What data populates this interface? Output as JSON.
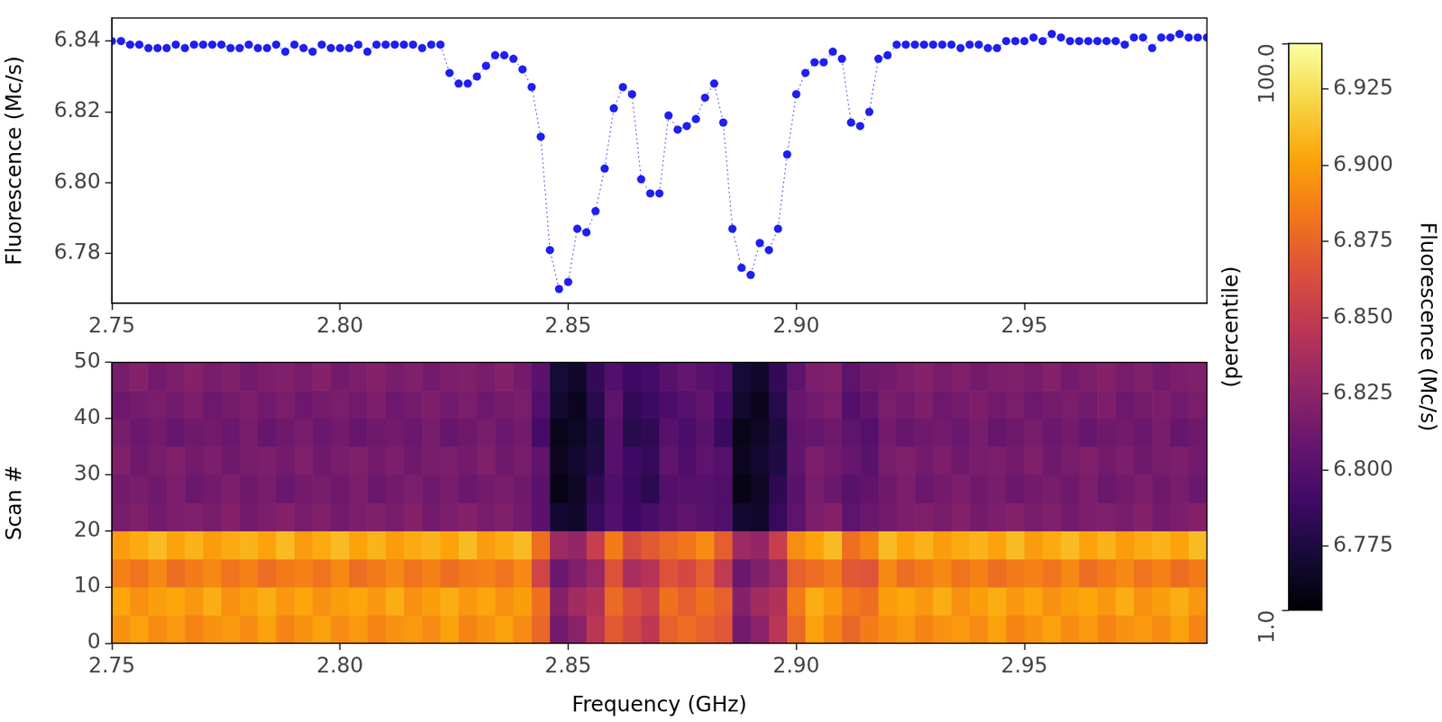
{
  "chart_data": [
    {
      "type": "line",
      "ylabel": "Fluorescence (Mc/s)",
      "color": "#1f1ff0",
      "marker": "circle",
      "line_style": "dotted",
      "grid": false,
      "xlim": [
        2.75,
        2.99
      ],
      "xticks": [
        2.75,
        {
          "value": 2.8,
          "label": "2.80"
        },
        2.85,
        {
          "value": 2.9,
          "label": "2.90"
        },
        2.95
      ],
      "ylim": [
        6.766,
        6.8465
      ],
      "yticks": [
        6.78,
        {
          "value": 6.8,
          "label": "6.80"
        },
        6.82,
        6.84
      ],
      "x": [
        2.75,
        2.752,
        2.754,
        2.756,
        2.758,
        2.76,
        2.762,
        2.764,
        2.766,
        2.768,
        2.77,
        2.772,
        2.774,
        2.776,
        2.778,
        2.78,
        2.782,
        2.784,
        2.786,
        2.788,
        2.79,
        2.792,
        2.794,
        2.796,
        2.798,
        2.8,
        2.802,
        2.804,
        2.806,
        2.808,
        2.81,
        2.812,
        2.814,
        2.816,
        2.818,
        2.82,
        2.822,
        2.824,
        2.826,
        2.828,
        2.83,
        2.832,
        2.834,
        2.836,
        2.838,
        2.84,
        2.842,
        2.844,
        2.846,
        2.848,
        2.85,
        2.852,
        2.854,
        2.856,
        2.858,
        2.86,
        2.862,
        2.864,
        2.866,
        2.868,
        2.87,
        2.872,
        2.874,
        2.876,
        2.878,
        2.88,
        2.882,
        2.884,
        2.886,
        2.888,
        2.89,
        2.892,
        2.894,
        2.896,
        2.898,
        2.9,
        2.902,
        2.904,
        2.906,
        2.908,
        2.91,
        2.912,
        2.914,
        2.916,
        2.918,
        2.92,
        2.922,
        2.924,
        2.926,
        2.928,
        2.93,
        2.932,
        2.934,
        2.936,
        2.938,
        2.94,
        2.942,
        2.944,
        2.946,
        2.948,
        2.95,
        2.952,
        2.954,
        2.956,
        2.958,
        2.96,
        2.962,
        2.964,
        2.966,
        2.968,
        2.97,
        2.972,
        2.974,
        2.976,
        2.978,
        2.98,
        2.982,
        2.984,
        2.986,
        2.988,
        2.99
      ],
      "values": [
        6.84,
        6.84,
        6.839,
        6.839,
        6.838,
        6.838,
        6.838,
        6.839,
        6.838,
        6.839,
        6.839,
        6.839,
        6.839,
        6.838,
        6.838,
        6.839,
        6.838,
        6.838,
        6.839,
        6.837,
        6.839,
        6.838,
        6.837,
        6.839,
        6.838,
        6.838,
        6.838,
        6.839,
        6.837,
        6.839,
        6.839,
        6.839,
        6.839,
        6.839,
        6.838,
        6.839,
        6.839,
        6.831,
        6.828,
        6.828,
        6.83,
        6.833,
        6.836,
        6.836,
        6.835,
        6.832,
        6.827,
        6.813,
        6.781,
        6.77,
        6.772,
        6.787,
        6.786,
        6.792,
        6.804,
        6.821,
        6.827,
        6.825,
        6.801,
        6.797,
        6.797,
        6.819,
        6.815,
        6.816,
        6.818,
        6.824,
        6.828,
        6.817,
        6.787,
        6.776,
        6.774,
        6.783,
        6.781,
        6.787,
        6.808,
        6.825,
        6.831,
        6.834,
        6.834,
        6.837,
        6.835,
        6.817,
        6.816,
        6.82,
        6.835,
        6.836,
        6.839,
        6.839,
        6.839,
        6.839,
        6.839,
        6.839,
        6.839,
        6.838,
        6.839,
        6.839,
        6.838,
        6.838,
        6.84,
        6.84,
        6.84,
        6.841,
        6.84,
        6.842,
        6.841,
        6.84,
        6.84,
        6.84,
        6.84,
        6.84,
        6.84,
        6.839,
        6.841,
        6.841,
        6.838,
        6.841,
        6.841,
        6.842,
        6.841,
        6.841,
        6.841
      ]
    },
    {
      "type": "heatmap",
      "xlabel": "Frequency (GHz)",
      "ylabel": "Scan #",
      "grid": false,
      "xlim": [
        2.75,
        2.99
      ],
      "xticks": [
        2.75,
        {
          "value": 2.8,
          "label": "2.80"
        },
        2.85,
        {
          "value": 2.9,
          "label": "2.90"
        },
        2.95
      ],
      "ylim": [
        0,
        50
      ],
      "yticks": [
        0,
        10,
        20,
        30,
        40,
        50
      ],
      "x_edges": [
        2.75,
        2.754,
        2.758,
        2.762,
        2.766,
        2.77,
        2.774,
        2.778,
        2.782,
        2.786,
        2.79,
        2.794,
        2.798,
        2.802,
        2.806,
        2.81,
        2.814,
        2.818,
        2.822,
        2.826,
        2.83,
        2.834,
        2.838,
        2.842,
        2.846,
        2.85,
        2.854,
        2.858,
        2.862,
        2.866,
        2.87,
        2.874,
        2.878,
        2.882,
        2.886,
        2.89,
        2.894,
        2.898,
        2.902,
        2.906,
        2.91,
        2.914,
        2.918,
        2.922,
        2.926,
        2.93,
        2.934,
        2.938,
        2.942,
        2.946,
        2.95,
        2.954,
        2.958,
        2.962,
        2.966,
        2.97,
        2.974,
        2.978,
        2.982,
        2.986,
        2.99
      ],
      "y_edges": [
        0,
        5,
        10,
        15,
        20,
        25,
        30,
        35,
        40,
        45,
        50
      ],
      "cells": [
        [
          6.895,
          6.901,
          6.892,
          6.898,
          6.889,
          6.895,
          6.898,
          6.892,
          6.901,
          6.889,
          6.895,
          6.901,
          6.892,
          6.898,
          6.889,
          6.895,
          6.898,
          6.892,
          6.901,
          6.889,
          6.895,
          6.901,
          6.892,
          6.876,
          6.814,
          6.824,
          6.846,
          6.87,
          6.86,
          6.848,
          6.873,
          6.879,
          6.873,
          6.868,
          6.814,
          6.824,
          6.846,
          6.877,
          6.901,
          6.889,
          6.876,
          6.886,
          6.892,
          6.898,
          6.889,
          6.895,
          6.898,
          6.892,
          6.901,
          6.889,
          6.895,
          6.901,
          6.892,
          6.898,
          6.889,
          6.895,
          6.898,
          6.892,
          6.901,
          6.889
        ],
        [
          6.903,
          6.894,
          6.9,
          6.903,
          6.897,
          6.906,
          6.894,
          6.9,
          6.906,
          6.897,
          6.903,
          6.894,
          6.9,
          6.903,
          6.897,
          6.906,
          6.894,
          6.9,
          6.906,
          6.897,
          6.903,
          6.894,
          6.9,
          6.881,
          6.822,
          6.835,
          6.842,
          6.878,
          6.865,
          6.856,
          6.881,
          6.872,
          6.881,
          6.873,
          6.822,
          6.835,
          6.842,
          6.885,
          6.906,
          6.897,
          6.884,
          6.879,
          6.9,
          6.903,
          6.897,
          6.906,
          6.894,
          6.9,
          6.906,
          6.897,
          6.903,
          6.894,
          6.9,
          6.903,
          6.897,
          6.906,
          6.894,
          6.9,
          6.906,
          6.897
        ],
        [
          6.888,
          6.882,
          6.891,
          6.879,
          6.885,
          6.891,
          6.882,
          6.888,
          6.879,
          6.885,
          6.888,
          6.882,
          6.891,
          6.879,
          6.885,
          6.891,
          6.882,
          6.888,
          6.879,
          6.885,
          6.888,
          6.882,
          6.891,
          6.857,
          6.81,
          6.82,
          6.83,
          6.866,
          6.838,
          6.844,
          6.866,
          6.86,
          6.872,
          6.849,
          6.81,
          6.82,
          6.83,
          6.873,
          6.879,
          6.885,
          6.869,
          6.867,
          6.891,
          6.879,
          6.885,
          6.891,
          6.882,
          6.888,
          6.879,
          6.885,
          6.888,
          6.882,
          6.891,
          6.879,
          6.885,
          6.891,
          6.882,
          6.888,
          6.879,
          6.885
        ],
        [
          6.899,
          6.905,
          6.911,
          6.902,
          6.908,
          6.899,
          6.905,
          6.908,
          6.902,
          6.911,
          6.899,
          6.905,
          6.911,
          6.902,
          6.908,
          6.899,
          6.905,
          6.908,
          6.902,
          6.911,
          6.899,
          6.905,
          6.911,
          6.88,
          6.833,
          6.828,
          6.853,
          6.886,
          6.861,
          6.87,
          6.877,
          6.883,
          6.892,
          6.872,
          6.833,
          6.828,
          6.853,
          6.893,
          6.902,
          6.911,
          6.88,
          6.89,
          6.911,
          6.902,
          6.908,
          6.899,
          6.905,
          6.908,
          6.902,
          6.911,
          6.899,
          6.905,
          6.911,
          6.902,
          6.908,
          6.899,
          6.905,
          6.908,
          6.902,
          6.911
        ],
        [
          6.816,
          6.82,
          6.814,
          6.818,
          6.82,
          6.816,
          6.822,
          6.814,
          6.818,
          6.822,
          6.816,
          6.82,
          6.814,
          6.818,
          6.82,
          6.816,
          6.822,
          6.814,
          6.818,
          6.822,
          6.816,
          6.82,
          6.814,
          6.803,
          6.77,
          6.768,
          6.787,
          6.799,
          6.79,
          6.794,
          6.801,
          6.805,
          6.802,
          6.798,
          6.77,
          6.768,
          6.787,
          6.804,
          6.818,
          6.822,
          6.804,
          6.81,
          6.814,
          6.818,
          6.82,
          6.816,
          6.822,
          6.814,
          6.818,
          6.822,
          6.816,
          6.82,
          6.814,
          6.818,
          6.82,
          6.816,
          6.822,
          6.814,
          6.818,
          6.822
        ],
        [
          6.814,
          6.816,
          6.812,
          6.818,
          6.81,
          6.814,
          6.818,
          6.812,
          6.816,
          6.81,
          6.814,
          6.816,
          6.812,
          6.818,
          6.81,
          6.814,
          6.818,
          6.812,
          6.816,
          6.81,
          6.814,
          6.816,
          6.812,
          6.803,
          6.76,
          6.766,
          6.783,
          6.797,
          6.788,
          6.782,
          6.799,
          6.801,
          6.8,
          6.798,
          6.76,
          6.766,
          6.783,
          6.802,
          6.816,
          6.81,
          6.802,
          6.806,
          6.812,
          6.818,
          6.81,
          6.814,
          6.818,
          6.812,
          6.816,
          6.81,
          6.814,
          6.816,
          6.812,
          6.818,
          6.81,
          6.814,
          6.818,
          6.812,
          6.816,
          6.81
        ],
        [
          6.82,
          6.812,
          6.816,
          6.82,
          6.814,
          6.818,
          6.812,
          6.816,
          6.818,
          6.814,
          6.82,
          6.812,
          6.816,
          6.82,
          6.814,
          6.818,
          6.812,
          6.816,
          6.818,
          6.814,
          6.82,
          6.812,
          6.816,
          6.805,
          6.764,
          6.77,
          6.777,
          6.801,
          6.79,
          6.786,
          6.805,
          6.797,
          6.804,
          6.8,
          6.764,
          6.77,
          6.777,
          6.806,
          6.818,
          6.814,
          6.808,
          6.802,
          6.816,
          6.82,
          6.814,
          6.818,
          6.812,
          6.816,
          6.818,
          6.814,
          6.82,
          6.812,
          6.816,
          6.82,
          6.814,
          6.818,
          6.812,
          6.816,
          6.818,
          6.814
        ],
        [
          6.816,
          6.81,
          6.814,
          6.808,
          6.812,
          6.814,
          6.81,
          6.816,
          6.808,
          6.812,
          6.816,
          6.81,
          6.814,
          6.808,
          6.812,
          6.814,
          6.81,
          6.816,
          6.808,
          6.812,
          6.816,
          6.81,
          6.814,
          6.793,
          6.762,
          6.766,
          6.775,
          6.801,
          6.78,
          6.784,
          6.801,
          6.795,
          6.802,
          6.788,
          6.762,
          6.766,
          6.775,
          6.806,
          6.808,
          6.812,
          6.804,
          6.8,
          6.814,
          6.808,
          6.812,
          6.814,
          6.81,
          6.816,
          6.808,
          6.812,
          6.816,
          6.81,
          6.814,
          6.808,
          6.812,
          6.814,
          6.81,
          6.816,
          6.808,
          6.812
        ],
        [
          6.811,
          6.815,
          6.817,
          6.813,
          6.819,
          6.811,
          6.815,
          6.819,
          6.813,
          6.817,
          6.811,
          6.815,
          6.817,
          6.813,
          6.819,
          6.811,
          6.815,
          6.819,
          6.813,
          6.817,
          6.811,
          6.815,
          6.817,
          6.798,
          6.769,
          6.763,
          6.78,
          6.804,
          6.785,
          6.789,
          6.796,
          6.8,
          6.805,
          6.793,
          6.769,
          6.763,
          6.78,
          6.809,
          6.813,
          6.817,
          6.799,
          6.805,
          6.817,
          6.813,
          6.819,
          6.811,
          6.815,
          6.819,
          6.813,
          6.817,
          6.811,
          6.815,
          6.817,
          6.813,
          6.819,
          6.811,
          6.815,
          6.819,
          6.813,
          6.817
        ],
        [
          6.816,
          6.822,
          6.814,
          6.818,
          6.822,
          6.816,
          6.82,
          6.814,
          6.818,
          6.82,
          6.816,
          6.822,
          6.814,
          6.818,
          6.822,
          6.816,
          6.82,
          6.814,
          6.818,
          6.82,
          6.816,
          6.822,
          6.814,
          6.803,
          6.772,
          6.768,
          6.785,
          6.799,
          6.79,
          6.792,
          6.801,
          6.807,
          6.802,
          6.798,
          6.772,
          6.768,
          6.785,
          6.804,
          6.818,
          6.82,
          6.804,
          6.812,
          6.814,
          6.818,
          6.822,
          6.816,
          6.82,
          6.814,
          6.818,
          6.82,
          6.816,
          6.822,
          6.814,
          6.818,
          6.822,
          6.816,
          6.82,
          6.814,
          6.818,
          6.82
        ]
      ],
      "colorbar": {
        "label": "Fluorescence (Mc/s)",
        "range": [
          6.754,
          6.94
        ],
        "ticks": [
          6.775,
          {
            "value": 6.8,
            "label": "6.800"
          },
          6.825,
          {
            "value": 6.85,
            "label": "6.850"
          },
          6.875,
          {
            "value": 6.9,
            "label": "6.900"
          },
          6.925
        ],
        "percentile_label": "(percentile)",
        "percentile_range": [
          1,
          100
        ],
        "percentile_ticks": [
          {
            "value": 1,
            "label": "1.0"
          },
          {
            "value": 100,
            "label": "100.0"
          }
        ]
      }
    }
  ]
}
